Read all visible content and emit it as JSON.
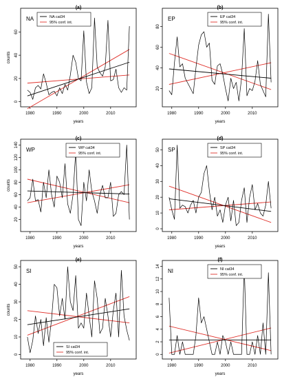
{
  "chart_data": [
    {
      "type": "line",
      "panel_label": "(a)",
      "region": "NA",
      "xlabel": "years",
      "ylabel": "counts",
      "xlim": [
        1977.5,
        2018.5
      ],
      "ylim": [
        -2,
        78
      ],
      "xticks": [
        1980,
        1990,
        2000,
        2010
      ],
      "yticks": [
        0,
        20,
        40,
        60
      ],
      "legend": {
        "position": "top-left",
        "entries": [
          "NA cat34",
          "95% conf. int."
        ]
      },
      "x": [
        1979,
        1980,
        1981,
        1982,
        1983,
        1984,
        1985,
        1986,
        1987,
        1988,
        1989,
        1990,
        1991,
        1992,
        1993,
        1994,
        1995,
        1996,
        1997,
        1998,
        1999,
        2000,
        2001,
        2002,
        2003,
        2004,
        2005,
        2006,
        2007,
        2008,
        2009,
        2010,
        2011,
        2012,
        2013,
        2014,
        2015,
        2016,
        2017
      ],
      "series": [
        {
          "values": [
            10,
            8,
            2,
            12,
            14,
            11,
            24,
            16,
            6,
            8,
            9,
            5,
            12,
            7,
            15,
            10,
            23,
            40,
            34,
            20,
            18,
            61,
            17,
            7,
            12,
            72,
            30,
            25,
            22,
            30,
            70,
            18,
            19,
            28,
            12,
            8,
            12,
            10,
            65
          ],
          "color": "#000000"
        }
      ],
      "trend": {
        "start": [
          1979,
          5
        ],
        "end": [
          2017,
          34
        ],
        "color": "#000000"
      },
      "conf_int": [
        {
          "start": [
            1979,
            -6
          ],
          "end": [
            2017,
            45
          ],
          "color": "#e0302a"
        },
        {
          "start": [
            1979,
            16
          ],
          "end": [
            2017,
            23
          ],
          "color": "#e0302a"
        }
      ]
    },
    {
      "type": "line",
      "panel_label": "(b)",
      "region": "EP",
      "xlabel": "years",
      "ylabel": "",
      "xlim": [
        1977.5,
        2018.5
      ],
      "ylim": [
        5,
        95
      ],
      "xticks": [
        1980,
        1990,
        2000,
        2010
      ],
      "yticks": [
        20,
        40,
        60,
        80
      ],
      "legend": {
        "position": "top-right",
        "entries": [
          "EP cat34",
          "95% conf. int."
        ]
      },
      "x": [
        1979,
        1980,
        1981,
        1982,
        1983,
        1984,
        1985,
        1986,
        1987,
        1988,
        1989,
        1990,
        1991,
        1992,
        1993,
        1994,
        1995,
        1996,
        1997,
        1998,
        1999,
        2000,
        2001,
        2002,
        2003,
        2004,
        2005,
        2006,
        2007,
        2008,
        2009,
        2010,
        2011,
        2012,
        2013,
        2014,
        2015,
        2016,
        2017
      ],
      "series": [
        {
          "values": [
            18,
            14,
            45,
            70,
            41,
            44,
            30,
            25,
            20,
            15,
            40,
            62,
            72,
            75,
            60,
            64,
            28,
            24,
            42,
            44,
            34,
            20,
            8,
            30,
            20,
            26,
            8,
            30,
            78,
            13,
            20,
            18,
            27,
            47,
            24,
            18,
            12,
            92,
            26
          ],
          "color": "#000000"
        }
      ],
      "trend": {
        "start": [
          1979,
          39
        ],
        "end": [
          2017,
          30
        ],
        "color": "#000000"
      },
      "conf_int": [
        {
          "start": [
            1979,
            54
          ],
          "end": [
            2017,
            19
          ],
          "color": "#e0302a"
        },
        {
          "start": [
            1979,
            24
          ],
          "end": [
            2017,
            45
          ],
          "color": "#e0302a"
        }
      ]
    },
    {
      "type": "line",
      "panel_label": "(c)",
      "region": "WP",
      "xlabel": "years",
      "ylabel": "counts",
      "xlim": [
        1977.5,
        2018.5
      ],
      "ylim": [
        5,
        145
      ],
      "xticks": [
        1980,
        1990,
        2000,
        2010
      ],
      "yticks": [
        20,
        40,
        60,
        80,
        100,
        120,
        140
      ],
      "legend": {
        "position": "top-right",
        "entries": [
          "WP cat34",
          "95% conf. int."
        ]
      },
      "x": [
        1979,
        1980,
        1981,
        1982,
        1983,
        1984,
        1985,
        1986,
        1987,
        1988,
        1989,
        1990,
        1991,
        1992,
        1993,
        1994,
        1995,
        1996,
        1997,
        1998,
        1999,
        2000,
        2001,
        2002,
        2003,
        2004,
        2005,
        2006,
        2007,
        2008,
        2009,
        2010,
        2011,
        2012,
        2013,
        2014,
        2015,
        2016,
        2017
      ],
      "series": [
        {
          "values": [
            50,
            55,
            85,
            50,
            52,
            32,
            80,
            55,
            100,
            60,
            40,
            90,
            80,
            55,
            110,
            45,
            30,
            60,
            130,
            20,
            10,
            80,
            50,
            100,
            65,
            50,
            30,
            60,
            75,
            55,
            55,
            80,
            25,
            30,
            60,
            65,
            60,
            140,
            20
          ],
          "color": "#000000"
        }
      ],
      "trend": {
        "start": [
          1979,
          66
        ],
        "end": [
          2017,
          61
        ],
        "color": "#000000"
      },
      "conf_int": [
        {
          "start": [
            1979,
            85
          ],
          "end": [
            2017,
            47
          ],
          "color": "#e0302a"
        },
        {
          "start": [
            1979,
            47
          ],
          "end": [
            2017,
            76
          ],
          "color": "#e0302a"
        }
      ]
    },
    {
      "type": "line",
      "panel_label": "(d)",
      "region": "SP",
      "xlabel": "years",
      "ylabel": "",
      "xlim": [
        1977.5,
        2018.5
      ],
      "ylim": [
        0,
        55
      ],
      "xticks": [
        1980,
        1990,
        2000,
        2010
      ],
      "yticks": [
        0,
        10,
        20,
        30,
        40,
        50
      ],
      "legend": {
        "position": "top-right",
        "entries": [
          "SP cat34",
          "95% conf. int."
        ]
      },
      "x": [
        1979,
        1980,
        1981,
        1982,
        1983,
        1984,
        1985,
        1986,
        1987,
        1988,
        1989,
        1990,
        1991,
        1992,
        1993,
        1994,
        1995,
        1996,
        1997,
        1998,
        1999,
        2000,
        2001,
        2002,
        2003,
        2004,
        2005,
        2006,
        2007,
        2008,
        2009,
        2010,
        2011,
        2012,
        2013,
        2014,
        2015,
        2016,
        2017
      ],
      "series": [
        {
          "values": [
            20,
            12,
            6,
            53,
            13,
            15,
            14,
            10,
            15,
            18,
            10,
            20,
            23,
            35,
            40,
            24,
            12,
            20,
            8,
            12,
            4,
            15,
            20,
            5,
            18,
            2,
            4,
            18,
            26,
            4,
            20,
            28,
            12,
            16,
            10,
            8,
            15,
            30,
            13
          ],
          "color": "#000000"
        }
      ],
      "trend": {
        "start": [
          1979,
          19
        ],
        "end": [
          2017,
          11
        ],
        "color": "#000000"
      },
      "conf_int": [
        {
          "start": [
            1979,
            27
          ],
          "end": [
            2017,
            4
          ],
          "color": "#e0302a"
        },
        {
          "start": [
            1979,
            12
          ],
          "end": [
            2017,
            17
          ],
          "color": "#e0302a"
        }
      ]
    },
    {
      "type": "line",
      "panel_label": "(e)",
      "region": "SI",
      "xlabel": "years",
      "ylabel": "counts",
      "xlim": [
        1977.5,
        2018.5
      ],
      "ylim": [
        -1,
        52
      ],
      "xticks": [
        1980,
        1990,
        2000,
        2010
      ],
      "yticks": [
        0,
        10,
        20,
        30,
        40,
        50
      ],
      "legend": {
        "position": "bottom-center",
        "entries": [
          "SI cat34",
          "95% conf. int."
        ]
      },
      "x": [
        1979,
        1980,
        1981,
        1982,
        1983,
        1984,
        1985,
        1986,
        1987,
        1988,
        1989,
        1990,
        1991,
        1992,
        1993,
        1994,
        1995,
        1996,
        1997,
        1998,
        1999,
        2000,
        2001,
        2002,
        2003,
        2004,
        2005,
        2006,
        2007,
        2008,
        2009,
        2010,
        2011,
        2012,
        2013,
        2014,
        2015,
        2016,
        2017
      ],
      "series": [
        {
          "values": [
            10,
            1,
            8,
            22,
            12,
            20,
            5,
            21,
            7,
            20,
            40,
            38,
            22,
            32,
            20,
            50,
            30,
            25,
            45,
            15,
            18,
            15,
            35,
            22,
            10,
            42,
            32,
            12,
            15,
            32,
            22,
            10,
            25,
            35,
            10,
            48,
            22,
            14,
            8
          ],
          "color": "#000000"
        }
      ],
      "trend": {
        "start": [
          1979,
          17
        ],
        "end": [
          2017,
          26
        ],
        "color": "#000000"
      },
      "conf_int": [
        {
          "start": [
            1979,
            11
          ],
          "end": [
            2017,
            33
          ],
          "color": "#e0302a"
        },
        {
          "start": [
            1979,
            25
          ],
          "end": [
            2017,
            18
          ],
          "color": "#e0302a"
        }
      ]
    },
    {
      "type": "line",
      "panel_label": "(f)",
      "region": "NI",
      "xlabel": "years",
      "ylabel": "",
      "xlim": [
        1977.5,
        2018.5
      ],
      "ylim": [
        -0.3,
        14.5
      ],
      "xticks": [
        1980,
        1990,
        2000,
        2010
      ],
      "yticks": [
        0,
        2,
        4,
        6,
        8,
        10,
        12,
        14
      ],
      "legend": {
        "position": "top-right",
        "entries": [
          "NI cat34",
          "95% conf. int."
        ]
      },
      "x": [
        1979,
        1980,
        1981,
        1982,
        1983,
        1984,
        1985,
        1986,
        1987,
        1988,
        1989,
        1990,
        1991,
        1992,
        1993,
        1994,
        1995,
        1996,
        1997,
        1998,
        1999,
        2000,
        2001,
        2002,
        2003,
        2004,
        2005,
        2006,
        2007,
        2008,
        2009,
        2010,
        2011,
        2012,
        2013,
        2014,
        2015,
        2016,
        2017
      ],
      "series": [
        {
          "values": [
            9,
            0,
            0,
            3,
            0,
            2,
            0,
            0,
            0,
            0,
            3,
            9,
            5,
            6,
            4,
            2,
            0,
            0,
            2,
            0,
            3,
            2,
            0,
            2,
            0,
            0,
            0,
            0,
            14,
            0,
            0,
            2,
            0,
            3,
            0,
            5,
            0,
            13,
            0
          ],
          "color": "#000000"
        }
      ],
      "trend": {
        "start": [
          1979,
          2.3
        ],
        "end": [
          2017,
          2.3
        ],
        "color": "#000000"
      },
      "conf_int": [
        {
          "start": [
            1979,
            4.5
          ],
          "end": [
            2017,
            0.6
          ],
          "color": "#e0302a"
        },
        {
          "start": [
            1979,
            0.2
          ],
          "end": [
            2017,
            4.2
          ],
          "color": "#e0302a"
        }
      ]
    }
  ]
}
